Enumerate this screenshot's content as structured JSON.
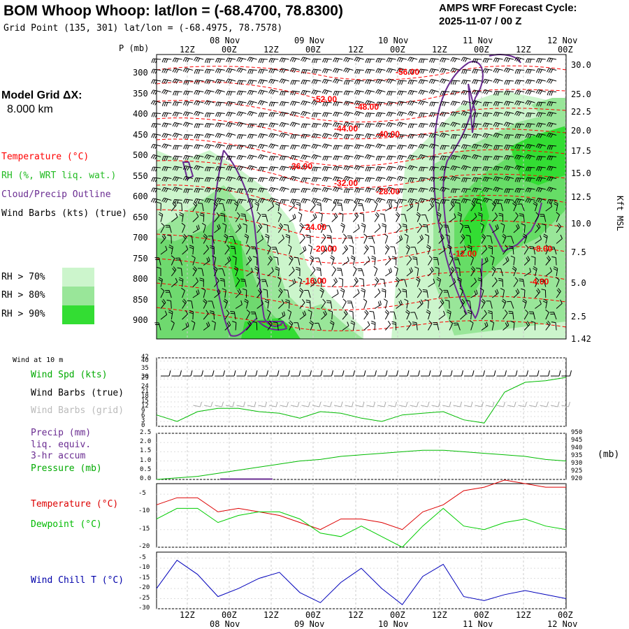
{
  "header": {
    "title": "BOM Whoop Whoop:  lat/lon = (-68.4700, 78.8300)",
    "grid_point": "Grid Point (135, 301) lat/lon = (-68.4975, 78.7578)",
    "forecast_label": "AMPS WRF Forecast Cycle:",
    "forecast_cycle": "2025-11-07 / 00  Z",
    "model_grid_label": "Model Grid ΔX:",
    "model_grid_value": "8.000 km"
  },
  "colors": {
    "temperature": "#ff0000",
    "rh": "#22bb22",
    "cloud": "#6a2c91",
    "wind_spd": "#00aa00",
    "pressure": "#00aa00",
    "precip": "#6a2c91",
    "dewpoint": "#00cc00",
    "wind_chill": "#0000bb",
    "rh70": "#ccf5cc",
    "rh80": "#99e699",
    "rh90": "#33dd33"
  },
  "time_axis": {
    "ticks": [
      "12Z",
      "00Z",
      "12Z",
      "00Z",
      "12Z",
      "00Z",
      "12Z",
      "00Z",
      "12Z",
      "00Z"
    ],
    "dates": [
      "08 Nov",
      "09 Nov",
      "10 Nov",
      "11 Nov",
      "12 Nov"
    ]
  },
  "main_panel": {
    "p_label": "P (mb)",
    "kft_label": "Kft MSL",
    "pressure_ticks": [
      "300",
      "350",
      "400",
      "450",
      "500",
      "550",
      "600",
      "650",
      "700",
      "750",
      "800",
      "850",
      "900"
    ],
    "height_ticks": [
      "30.0",
      "25.0",
      "22.5",
      "20.0",
      "17.5",
      "15.0",
      "12.5",
      "10.0",
      "7.5",
      "5.0",
      "2.5",
      "1.42"
    ],
    "legend": {
      "temperature": "Temperature (°C)",
      "rh": "RH (%, WRT liq. wat.)",
      "cloud": "Cloud/Precip Outline",
      "wind": "Wind Barbs (kts) (true)",
      "rh70": "RH > 70%",
      "rh80": "RH > 80%",
      "rh90": "RH > 90%"
    },
    "isotherm_labels": [
      "-56.00",
      "-52.00",
      "-48.00",
      "-44.00",
      "-40.00",
      "-36.00",
      "-32.00",
      "-28.00",
      "-24.00",
      "-20.00",
      "-16.00",
      "-12.00",
      "-8.00",
      "-4.00"
    ]
  },
  "wind_panel": {
    "label": "Wind at 10 m",
    "spd_label": "Wind Spd (kts)",
    "barbs_true": "Wind Barbs (true)",
    "barbs_grid": "Wind Barbs (grid)",
    "yticks": [
      "42",
      "40",
      "35",
      "30",
      "29",
      "24",
      "21",
      "18",
      "15",
      "12",
      "9",
      "6",
      "3",
      "0"
    ]
  },
  "precip_panel": {
    "label1": "Precip (mm)",
    "label2": "liq. equiv.",
    "label3": "3-hr accum",
    "label4": "Pressure (mb)",
    "unit": "(mb)",
    "left_ticks": [
      "2.5",
      "2.0",
      "1.5",
      "1.0",
      "0.5",
      "0.0"
    ],
    "right_ticks": [
      "950",
      "945",
      "940",
      "935",
      "930",
      "925",
      "920"
    ]
  },
  "temp_panel": {
    "temp_label": "Temperature (°C)",
    "dew_label": "Dewpoint (°C)",
    "ticks": [
      "-5",
      "-10",
      "-15",
      "-20"
    ]
  },
  "chill_panel": {
    "label": "Wind Chill T (°C)",
    "ticks": [
      "-5",
      "-10",
      "-15",
      "-20",
      "-25",
      "-30"
    ]
  },
  "chart_data": [
    {
      "type": "line",
      "title": "Wind Spd (kts)",
      "x_hours": [
        0,
        6,
        12,
        18,
        24,
        30,
        36,
        42,
        48,
        54,
        60,
        66,
        72,
        78,
        84,
        90,
        96,
        102,
        108,
        114,
        120
      ],
      "series": [
        {
          "name": "Wind Spd (kts)",
          "values": [
            7,
            3,
            9,
            11,
            11,
            9,
            8,
            5,
            9,
            8,
            5,
            3,
            7,
            8,
            9,
            4,
            2,
            21,
            27,
            28,
            30
          ]
        }
      ],
      "ylim": [
        0,
        42
      ]
    },
    {
      "type": "line",
      "title": "Precip / Pressure",
      "x_hours": [
        0,
        6,
        12,
        18,
        24,
        30,
        36,
        42,
        48,
        54,
        60,
        66,
        72,
        78,
        84,
        90,
        96,
        102,
        108,
        114,
        120
      ],
      "series": [
        {
          "name": "Pressure (mb)",
          "values": [
            920,
            921,
            922,
            924,
            926,
            928,
            930,
            932,
            933,
            935,
            936,
            937,
            938,
            939,
            939,
            938,
            937,
            936,
            935,
            933,
            932
          ]
        },
        {
          "name": "Precip (mm)",
          "values": [
            0,
            0,
            0,
            0,
            0,
            0,
            0,
            0,
            0,
            0,
            0,
            0,
            0,
            0,
            0,
            0,
            0,
            0,
            0,
            0,
            0
          ]
        }
      ],
      "ylim_left": [
        0,
        2.5
      ],
      "ylim_right": [
        920,
        950
      ]
    },
    {
      "type": "line",
      "title": "Temperature / Dewpoint (°C)",
      "x_hours": [
        0,
        6,
        12,
        18,
        24,
        30,
        36,
        42,
        48,
        54,
        60,
        66,
        72,
        78,
        84,
        90,
        96,
        102,
        108,
        114,
        120
      ],
      "series": [
        {
          "name": "Temperature (°C)",
          "values": [
            -8,
            -6,
            -6,
            -10,
            -9,
            -10,
            -11,
            -13,
            -15,
            -12,
            -12,
            -13,
            -15,
            -10,
            -8,
            -4,
            -3,
            -1,
            -2,
            -3,
            -3
          ]
        },
        {
          "name": "Dewpoint (°C)",
          "values": [
            -12,
            -9,
            -9,
            -13,
            -11,
            -10,
            -10,
            -12,
            -16,
            -17,
            -14,
            -17,
            -20,
            -14,
            -9,
            -14,
            -15,
            -13,
            -12,
            -14,
            -15
          ]
        }
      ],
      "ylim": [
        -20,
        -2
      ]
    },
    {
      "type": "line",
      "title": "Wind Chill T (°C)",
      "x_hours": [
        0,
        6,
        12,
        18,
        24,
        30,
        36,
        42,
        48,
        54,
        60,
        66,
        72,
        78,
        84,
        90,
        96,
        102,
        108,
        114,
        120
      ],
      "series": [
        {
          "name": "Wind Chill T (°C)",
          "values": [
            -20,
            -6,
            -13,
            -24,
            -20,
            -15,
            -12,
            -22,
            -27,
            -17,
            -10,
            -20,
            -28,
            -14,
            -8,
            -24,
            -26,
            -23,
            -21,
            -23,
            -25
          ]
        }
      ],
      "ylim": [
        -30,
        -2
      ]
    }
  ]
}
